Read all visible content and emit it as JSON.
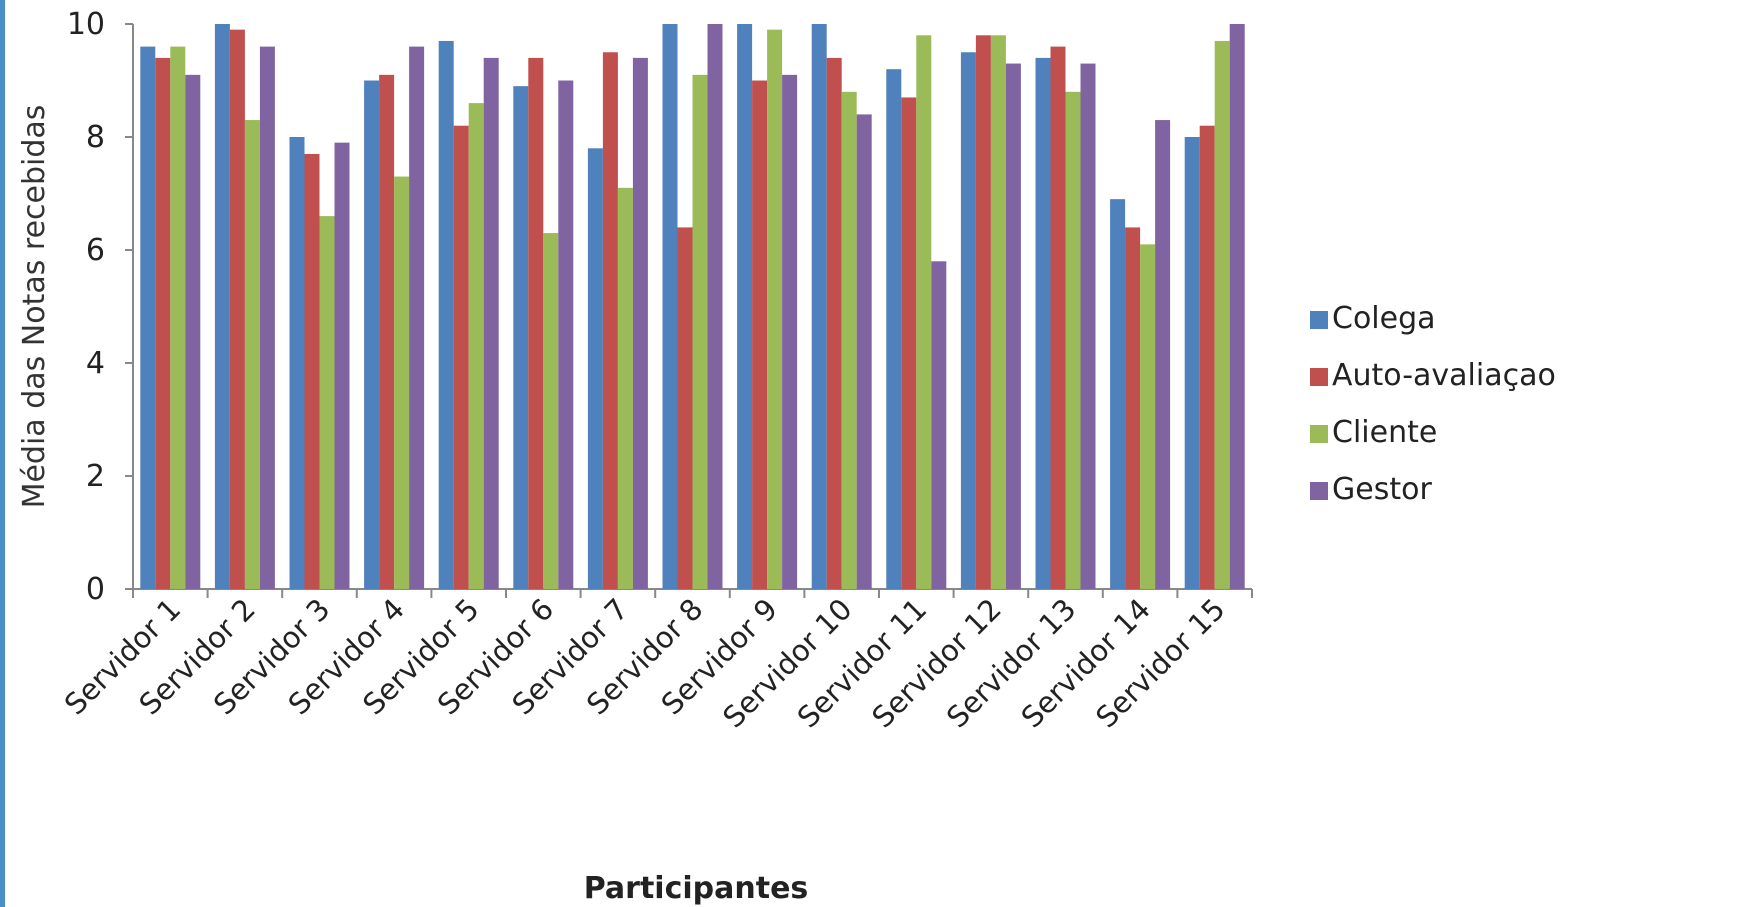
{
  "chart_data": {
    "type": "bar",
    "xlabel": "Participantes",
    "ylabel": "Média das Notas recebidas",
    "ylim": [
      0,
      10
    ],
    "yticks": [
      0,
      2,
      4,
      6,
      8,
      10
    ],
    "grid": false,
    "legend_position": "right",
    "categories": [
      "Servidor 1",
      "Servidor 2",
      "Servidor 3",
      "Servidor 4",
      "Servidor 5",
      "Servidor 6",
      "Servidor 7",
      "Servidor 8",
      "Servidor 9",
      "Servidor 10",
      "Servidor 11",
      "Servidor 12",
      "Servidor 13",
      "Servidor 14",
      "Servidor 15"
    ],
    "series": [
      {
        "name": "Colega",
        "color": "#4f81bd",
        "values": [
          9.6,
          10.0,
          8.0,
          9.0,
          9.7,
          8.9,
          7.8,
          10.0,
          10.0,
          10.0,
          9.2,
          9.5,
          9.4,
          6.9,
          8.0
        ]
      },
      {
        "name": "Auto-avaliaçao",
        "color": "#c0504d",
        "values": [
          9.4,
          9.9,
          7.7,
          9.1,
          8.2,
          9.4,
          9.5,
          6.4,
          9.0,
          9.4,
          8.7,
          9.8,
          9.6,
          6.4,
          8.2
        ]
      },
      {
        "name": "Cliente",
        "color": "#9bbb59",
        "values": [
          9.6,
          8.3,
          6.6,
          7.3,
          8.6,
          6.3,
          7.1,
          9.1,
          9.9,
          8.8,
          9.8,
          9.8,
          8.8,
          6.1,
          9.7
        ]
      },
      {
        "name": "Gestor",
        "color": "#8064a2",
        "values": [
          9.1,
          9.6,
          7.9,
          9.6,
          9.4,
          9.0,
          9.4,
          10.0,
          9.1,
          8.4,
          5.8,
          9.3,
          9.3,
          8.3,
          10.0
        ]
      }
    ]
  }
}
